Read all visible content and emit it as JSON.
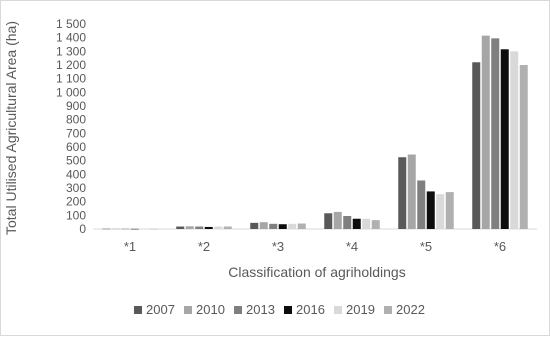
{
  "chart_data": {
    "type": "bar",
    "title": "",
    "xlabel": "Classification of agriholdings",
    "ylabel": "Total Utilised Agricultural Area (ha)",
    "ylim": [
      0,
      1500
    ],
    "yticks": [
      0,
      100,
      200,
      300,
      400,
      500,
      600,
      700,
      800,
      900,
      1000,
      1100,
      1200,
      1300,
      1400,
      1500
    ],
    "ytick_labels": [
      "0",
      "100",
      "200",
      "300",
      "400",
      "500",
      "600",
      "700",
      "800",
      "900",
      "1 000",
      "1 100",
      "1 200",
      "1 300",
      "1 400",
      "1 500"
    ],
    "categories": [
      "*1",
      "*2",
      "*3",
      "*4",
      "*5",
      "*6"
    ],
    "grid": false,
    "legend_position": "bottom",
    "series": [
      {
        "name": "2007",
        "color": "#595959",
        "values": [
          2,
          18,
          45,
          115,
          525,
          1220
        ]
      },
      {
        "name": "2010",
        "color": "#a6a6a6",
        "values": [
          2,
          20,
          50,
          125,
          545,
          1415
        ]
      },
      {
        "name": "2013",
        "color": "#7f7f7f",
        "values": [
          2,
          18,
          38,
          95,
          355,
          1395
        ]
      },
      {
        "name": "2016",
        "color": "#0d0d0d",
        "values": [
          1,
          15,
          35,
          75,
          275,
          1315
        ]
      },
      {
        "name": "2019",
        "color": "#d9d9d9",
        "values": [
          1,
          18,
          38,
          75,
          255,
          1300
        ]
      },
      {
        "name": "2022",
        "color": "#b0b0b0",
        "values": [
          1,
          18,
          40,
          65,
          270,
          1200
        ]
      }
    ]
  }
}
